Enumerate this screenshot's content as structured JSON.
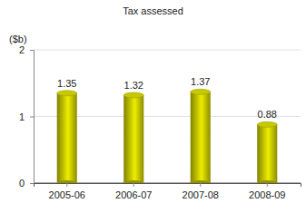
{
  "chart_data": {
    "type": "bar",
    "title": "Tax assessed",
    "y_label": "($b)",
    "categories": [
      "2005-06",
      "2006-07",
      "2007-08",
      "2008-09"
    ],
    "values": [
      1.35,
      1.32,
      1.37,
      0.88
    ],
    "color": "#adad00",
    "ylim": [
      0,
      2
    ],
    "yticks": [
      0,
      1,
      2
    ],
    "grid": true,
    "data_labels": true
  }
}
